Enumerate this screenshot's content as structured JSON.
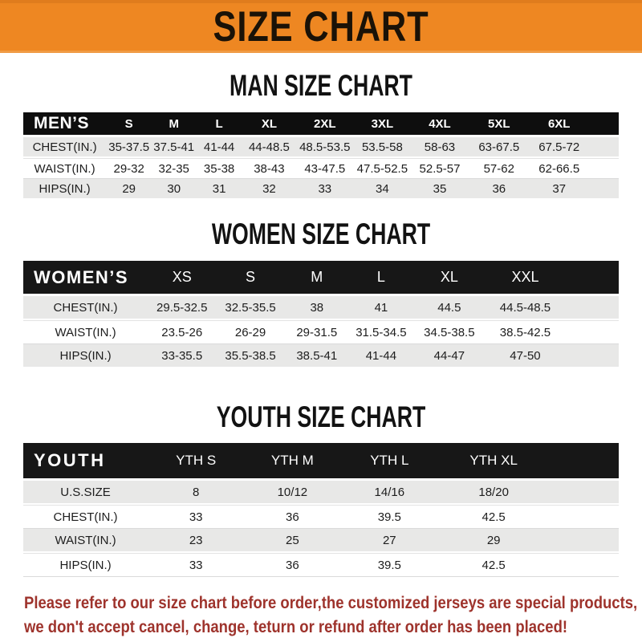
{
  "banner": {
    "title": "SIZE CHART",
    "bg_color": "#ee8722",
    "text_color": "#1a1207"
  },
  "sections": [
    {
      "heading": "MAN SIZE CHART",
      "header_label": "MEN’S",
      "columns": [
        "S",
        "M",
        "L",
        "XL",
        "2XL",
        "3XL",
        "4XL",
        "5XL",
        "6XL"
      ],
      "rows": [
        {
          "label": "CHEST(IN.)",
          "values": [
            "35-37.5",
            "37.5-41",
            "41-44",
            "44-48.5",
            "48.5-53.5",
            "53.5-58",
            "58-63",
            "63-67.5",
            "67.5-72"
          ]
        },
        {
          "label": "WAIST(IN.)",
          "values": [
            "29-32",
            "32-35",
            "35-38",
            "38-43",
            "43-47.5",
            "47.5-52.5",
            "52.5-57",
            "57-62",
            "62-66.5"
          ]
        },
        {
          "label": "HIPS(IN.)",
          "values": [
            "29",
            "30",
            "31",
            "32",
            "33",
            "34",
            "35",
            "36",
            "37"
          ]
        }
      ]
    },
    {
      "heading": "WOMEN SIZE CHART",
      "header_label": "WOMEN’S",
      "columns": [
        "XS",
        "S",
        "M",
        "L",
        "XL",
        "XXL"
      ],
      "rows": [
        {
          "label": "CHEST(IN.)",
          "values": [
            "29.5-32.5",
            "32.5-35.5",
            "38",
            "41",
            "44.5",
            "44.5-48.5"
          ]
        },
        {
          "label": "WAIST(IN.)",
          "values": [
            "23.5-26",
            "26-29",
            "29-31.5",
            "31.5-34.5",
            "34.5-38.5",
            "38.5-42.5"
          ]
        },
        {
          "label": "HIPS(IN.)",
          "values": [
            "33-35.5",
            "35.5-38.5",
            "38.5-41",
            "41-44",
            "44-47",
            "47-50"
          ]
        }
      ]
    },
    {
      "heading": "YOUTH SIZE CHART",
      "header_label": "YOUTH",
      "columns": [
        "YTH S",
        "YTH M",
        "YTH L",
        "YTH XL"
      ],
      "rows": [
        {
          "label": "U.S.SIZE",
          "values": [
            "8",
            "10/12",
            "14/16",
            "18/20"
          ]
        },
        {
          "label": "CHEST(IN.)",
          "values": [
            "33",
            "36",
            "39.5",
            "42.5"
          ]
        },
        {
          "label": "WAIST(IN.)",
          "values": [
            "23",
            "25",
            "27",
            "29"
          ]
        },
        {
          "label": "HIPS(IN.)",
          "values": [
            "33",
            "36",
            "39.5",
            "42.5"
          ]
        }
      ]
    }
  ],
  "disclaimer": {
    "line1": "Please refer to our size chart before order,the customized jerseys are special products,",
    "line2": "we don't accept cancel, change, teturn or refund after order has been placed!",
    "color": "#9e332c"
  }
}
